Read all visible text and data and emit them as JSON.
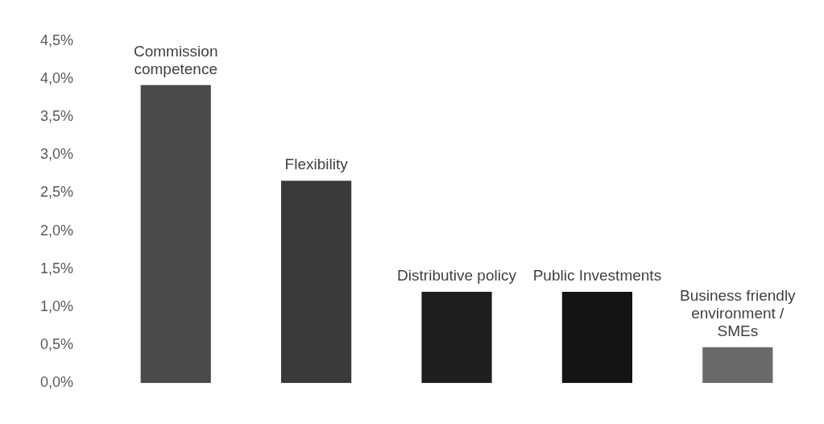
{
  "chart_data": {
    "type": "bar",
    "categories": [
      "Commission competence",
      "Flexibility",
      "Distributive policy",
      "Public Investments",
      "Business friendly environment / SMEs"
    ],
    "values": [
      3.92,
      2.66,
      1.2,
      1.2,
      0.47
    ],
    "colors": [
      "#4a4a4a",
      "#3a3a3a",
      "#1e1e1e",
      "#141414",
      "#6a6a6a"
    ],
    "ylim": [
      0,
      4.5
    ],
    "yticks": [
      {
        "value": 0,
        "label": "0,0%"
      },
      {
        "value": 0.5,
        "label": "0,5%"
      },
      {
        "value": 1,
        "label": "1,0%"
      },
      {
        "value": 1.5,
        "label": "1,5%"
      },
      {
        "value": 2,
        "label": "2,0%"
      },
      {
        "value": 2.5,
        "label": "2,5%"
      },
      {
        "value": 3,
        "label": "3,0%"
      },
      {
        "value": 3.5,
        "label": "3,5%"
      },
      {
        "value": 4,
        "label": "4,0%"
      },
      {
        "value": 4.5,
        "label": "4,5%"
      }
    ],
    "grid": false
  }
}
